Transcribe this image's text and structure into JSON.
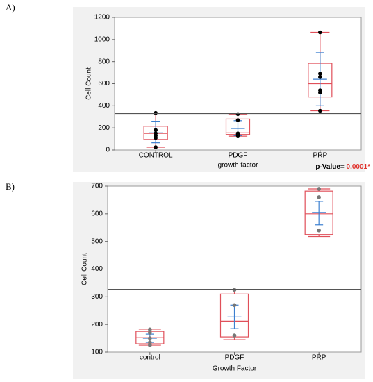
{
  "chart_data": [
    {
      "type": "box",
      "panel_label": "A)",
      "ylabel": "Cell Count",
      "xlabel": "growth factor",
      "categories": [
        "CONTROL",
        "PDGF",
        "PRP"
      ],
      "ylim": [
        0,
        1200
      ],
      "yticks": [
        0,
        200,
        400,
        600,
        800,
        1000,
        1200
      ],
      "reference_line": 330,
      "annotation": {
        "text": "p-Value=",
        "value": "0.0001*"
      },
      "box_color": "#e0505a",
      "mean_color": "#3b7fd0",
      "point_color": "#000000",
      "boxes": [
        {
          "min": 25,
          "q1": 95,
          "median": 150,
          "q3": 215,
          "max": 335,
          "mean": 155,
          "ci_low": 65,
          "ci_high": 260,
          "points": [
            335,
            180,
            150,
            130,
            110,
            25
          ]
        },
        {
          "min": 125,
          "q1": 140,
          "median": 155,
          "q3": 280,
          "max": 325,
          "mean": 195,
          "ci_low": 130,
          "ci_high": 265,
          "points": [
            325,
            270,
            150,
            140,
            130
          ]
        },
        {
          "min": 355,
          "q1": 480,
          "median": 600,
          "q3": 785,
          "max": 1065,
          "mean": 640,
          "ci_low": 400,
          "ci_high": 880,
          "points": [
            1065,
            690,
            660,
            540,
            520,
            355
          ]
        }
      ]
    },
    {
      "type": "box",
      "panel_label": "B)",
      "ylabel": "Cell Count",
      "xlabel": "Growth Factor",
      "categories": [
        "control",
        "PDGF",
        "PRP"
      ],
      "ylim": [
        100,
        700
      ],
      "yticks": [
        100,
        200,
        300,
        400,
        500,
        600,
        700
      ],
      "reference_line": 327,
      "box_color": "#e0505a",
      "mean_color": "#3b7fd0",
      "point_color": "#777777",
      "boxes": [
        {
          "min": 125,
          "q1": 130,
          "median": 152,
          "q3": 175,
          "max": 183,
          "mean": 150,
          "ci_low": 135,
          "ci_high": 165,
          "points": [
            182,
            170,
            150,
            135,
            125
          ]
        },
        {
          "min": 145,
          "q1": 155,
          "median": 212,
          "q3": 310,
          "max": 325,
          "mean": 227,
          "ci_low": 185,
          "ci_high": 270,
          "points": [
            325,
            270,
            160
          ]
        },
        {
          "min": 518,
          "q1": 525,
          "median": 600,
          "q3": 682,
          "max": 690,
          "mean": 605,
          "ci_low": 560,
          "ci_high": 645,
          "points": [
            690,
            660,
            540
          ]
        }
      ]
    }
  ]
}
